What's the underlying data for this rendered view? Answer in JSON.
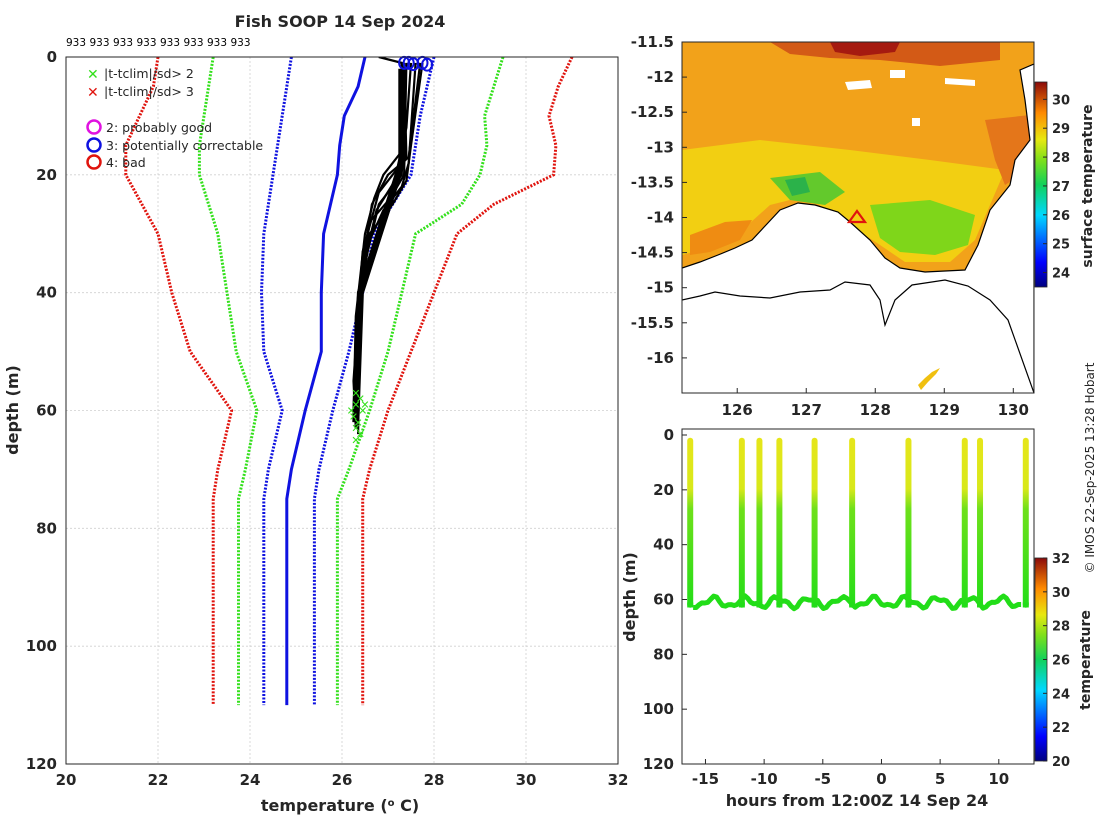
{
  "title": "Fish SOOP 14 Sep 2024",
  "watermark": "© IMOS 22-Sep-2025 13:28 Hobart",
  "profile_counts": [
    "933",
    "933",
    "933",
    "933",
    "933",
    "933",
    "933",
    "933"
  ],
  "legend": {
    "cross2": "|t-tclim|/sd> 2",
    "cross3": "|t-tclim|/sd> 3",
    "flag2": "2: probably good",
    "flag3": "3: potentially correctable",
    "flag4": "4: bad"
  },
  "colors": {
    "red": "#e0140e",
    "green": "#33e01b",
    "blue": "#0f12e0",
    "black": "#000000",
    "magenta": "#e012e0"
  },
  "chart_data": [
    {
      "type": "line",
      "name": "profile-panel",
      "xlabel": "temperature (° C)",
      "ylabel": "depth (m)",
      "xlim": [
        20,
        32
      ],
      "ylim": [
        0,
        120
      ],
      "y_reversed": true,
      "xticks": [
        20,
        22,
        24,
        26,
        28,
        30,
        32
      ],
      "yticks": [
        0,
        20,
        40,
        60,
        80,
        100,
        120
      ],
      "grid": true,
      "climatology": [
        {
          "name": "clim-3sd-low",
          "color": "red",
          "style": "dotted",
          "points": [
            [
              22,
              0
            ],
            [
              21.9,
              5
            ],
            [
              21.6,
              10
            ],
            [
              21.3,
              15
            ],
            [
              21.3,
              20
            ],
            [
              22,
              30
            ],
            [
              22.3,
              40
            ],
            [
              22.7,
              50
            ],
            [
              23.6,
              60
            ],
            [
              23.3,
              70
            ],
            [
              23.2,
              75
            ],
            [
              23.2,
              110
            ]
          ]
        },
        {
          "name": "clim-2sd-low",
          "color": "green",
          "style": "dotted",
          "points": [
            [
              23.2,
              0
            ],
            [
              23.1,
              5
            ],
            [
              23,
              10
            ],
            [
              22.9,
              15
            ],
            [
              22.9,
              20
            ],
            [
              23.3,
              30
            ],
            [
              23.5,
              40
            ],
            [
              23.7,
              50
            ],
            [
              24.15,
              60
            ],
            [
              23.9,
              70
            ],
            [
              23.75,
              75
            ],
            [
              23.75,
              110
            ]
          ]
        },
        {
          "name": "clim-1sd-low",
          "color": "blue",
          "style": "dotted",
          "points": [
            [
              24.9,
              0
            ],
            [
              24.7,
              10
            ],
            [
              24.5,
              20
            ],
            [
              24.3,
              30
            ],
            [
              24.25,
              40
            ],
            [
              24.3,
              50
            ],
            [
              24.7,
              60
            ],
            [
              24.4,
              70
            ],
            [
              24.3,
              75
            ],
            [
              24.3,
              110
            ]
          ]
        },
        {
          "name": "clim-mean",
          "color": "blue",
          "style": "solid",
          "points": [
            [
              26.5,
              0
            ],
            [
              26.35,
              5
            ],
            [
              26.05,
              10
            ],
            [
              25.95,
              15
            ],
            [
              25.9,
              20
            ],
            [
              25.6,
              30
            ],
            [
              25.55,
              40
            ],
            [
              25.55,
              50
            ],
            [
              25.2,
              60
            ],
            [
              24.9,
              70
            ],
            [
              24.8,
              75
            ],
            [
              24.8,
              110
            ]
          ]
        },
        {
          "name": "clim-1sd-high",
          "color": "blue",
          "style": "dotted",
          "points": [
            [
              28,
              0
            ],
            [
              27.85,
              5
            ],
            [
              27.7,
              10
            ],
            [
              27.6,
              15
            ],
            [
              27.5,
              20
            ],
            [
              27.1,
              25
            ],
            [
              26.7,
              30
            ],
            [
              26.45,
              40
            ],
            [
              26.15,
              50
            ],
            [
              25.8,
              60
            ],
            [
              25.5,
              70
            ],
            [
              25.4,
              75
            ],
            [
              25.4,
              110
            ]
          ]
        },
        {
          "name": "clim-2sd-high",
          "color": "green",
          "style": "dotted",
          "points": [
            [
              29.5,
              0
            ],
            [
              29.3,
              5
            ],
            [
              29.1,
              10
            ],
            [
              29.15,
              15
            ],
            [
              29,
              20
            ],
            [
              28.6,
              25
            ],
            [
              27.6,
              30
            ],
            [
              27.3,
              40
            ],
            [
              27,
              50
            ],
            [
              26.6,
              60
            ],
            [
              26.15,
              70
            ],
            [
              25.9,
              75
            ],
            [
              25.9,
              110
            ]
          ]
        },
        {
          "name": "clim-3sd-high",
          "color": "red",
          "style": "dotted",
          "points": [
            [
              31,
              0
            ],
            [
              30.7,
              5
            ],
            [
              30.5,
              10
            ],
            [
              30.65,
              15
            ],
            [
              30.6,
              20
            ],
            [
              29.3,
              25
            ],
            [
              28.5,
              30
            ],
            [
              28,
              40
            ],
            [
              27.5,
              50
            ],
            [
              27,
              60
            ],
            [
              26.6,
              70
            ],
            [
              26.45,
              75
            ],
            [
              26.45,
              110
            ]
          ]
        }
      ],
      "profiles": [
        [
          [
            26.8,
            0
          ],
          [
            27.3,
            1
          ],
          [
            27.3,
            20
          ],
          [
            27.1,
            22
          ],
          [
            26.8,
            25
          ],
          [
            26.5,
            35
          ],
          [
            26.3,
            50
          ],
          [
            26.25,
            60
          ]
        ],
        [
          [
            27.4,
            1
          ],
          [
            27.35,
            20
          ],
          [
            27.05,
            24
          ],
          [
            26.6,
            28
          ],
          [
            26.4,
            40
          ],
          [
            26.3,
            52
          ],
          [
            26.3,
            62
          ]
        ],
        [
          [
            27.6,
            1
          ],
          [
            27.45,
            18
          ],
          [
            27.3,
            22
          ],
          [
            26.9,
            26
          ],
          [
            26.55,
            32
          ],
          [
            26.35,
            45
          ],
          [
            26.3,
            63
          ]
        ],
        [
          [
            27.75,
            1
          ],
          [
            27.5,
            15
          ],
          [
            27.4,
            21
          ],
          [
            27.1,
            25
          ],
          [
            26.6,
            30
          ],
          [
            26.4,
            42
          ],
          [
            26.35,
            64
          ]
        ],
        [
          [
            27.3,
            1
          ],
          [
            27.3,
            16
          ],
          [
            26.9,
            20
          ],
          [
            26.7,
            24
          ],
          [
            26.5,
            30
          ],
          [
            26.3,
            44
          ],
          [
            26.25,
            61
          ]
        ],
        [
          [
            27.5,
            1
          ],
          [
            27.4,
            12
          ],
          [
            27.2,
            19
          ],
          [
            26.8,
            23
          ],
          [
            26.45,
            33
          ],
          [
            26.3,
            48
          ],
          [
            26.3,
            62
          ]
        ],
        [
          [
            27.35,
            1
          ],
          [
            27.4,
            17
          ],
          [
            27.15,
            21
          ],
          [
            26.75,
            26
          ],
          [
            26.45,
            36
          ],
          [
            26.35,
            50
          ],
          [
            26.35,
            60
          ]
        ],
        [
          [
            27.7,
            1
          ],
          [
            27.45,
            17
          ],
          [
            27.0,
            20
          ],
          [
            26.65,
            25
          ],
          [
            26.4,
            38
          ],
          [
            26.25,
            55
          ],
          [
            26.3,
            63
          ]
        ]
      ],
      "flag3_markers": [
        [
          27.35,
          1
        ],
        [
          27.45,
          1
        ],
        [
          27.55,
          1.2
        ],
        [
          27.75,
          1
        ],
        [
          27.85,
          1.3
        ]
      ],
      "flag2sd_points": [
        [
          26.3,
          57
        ],
        [
          26.4,
          58
        ],
        [
          26.3,
          59
        ],
        [
          26.45,
          60
        ],
        [
          26.25,
          61
        ],
        [
          26.35,
          62
        ],
        [
          26.3,
          63
        ],
        [
          26.4,
          64
        ],
        [
          26.2,
          60
        ],
        [
          26.5,
          59
        ],
        [
          26.3,
          65
        ]
      ]
    },
    {
      "type": "heatmap",
      "name": "surface-temperature-map",
      "colorbar_label": "surface temperature",
      "clim": [
        23.5,
        30.6
      ],
      "cticks": [
        24,
        25,
        26,
        27,
        28,
        29,
        30
      ],
      "xlim": [
        125.2,
        130.3
      ],
      "ylim": [
        -16.5,
        -11.5
      ],
      "xticks": [
        126,
        127,
        128,
        129,
        130
      ],
      "yticks": [
        -11.5,
        -12,
        -12.5,
        -13,
        -13.5,
        -14,
        -14.5,
        -15,
        -15.5,
        -16
      ],
      "ship_position": [
        127.75,
        -13.95
      ]
    },
    {
      "type": "scatter",
      "name": "time-depth-section",
      "xlabel": "hours from 12:00Z 14 Sep 24",
      "ylabel": "depth (m)",
      "colorbar_label": "temperature",
      "clim": [
        20,
        32
      ],
      "cticks": [
        20,
        22,
        24,
        26,
        28,
        30,
        32
      ],
      "xlim": [
        -17,
        13
      ],
      "ylim": [
        0,
        120
      ],
      "xticks": [
        -15,
        -10,
        -5,
        0,
        5,
        10
      ],
      "yticks": [
        0,
        20,
        40,
        60,
        80,
        100,
        120
      ],
      "casts": [
        -16.3,
        -11.9,
        -10.4,
        -8.7,
        -5.7,
        -2.5,
        2.3,
        7.1,
        8.4,
        12.3
      ],
      "bottom_depth_m": 61
    }
  ]
}
